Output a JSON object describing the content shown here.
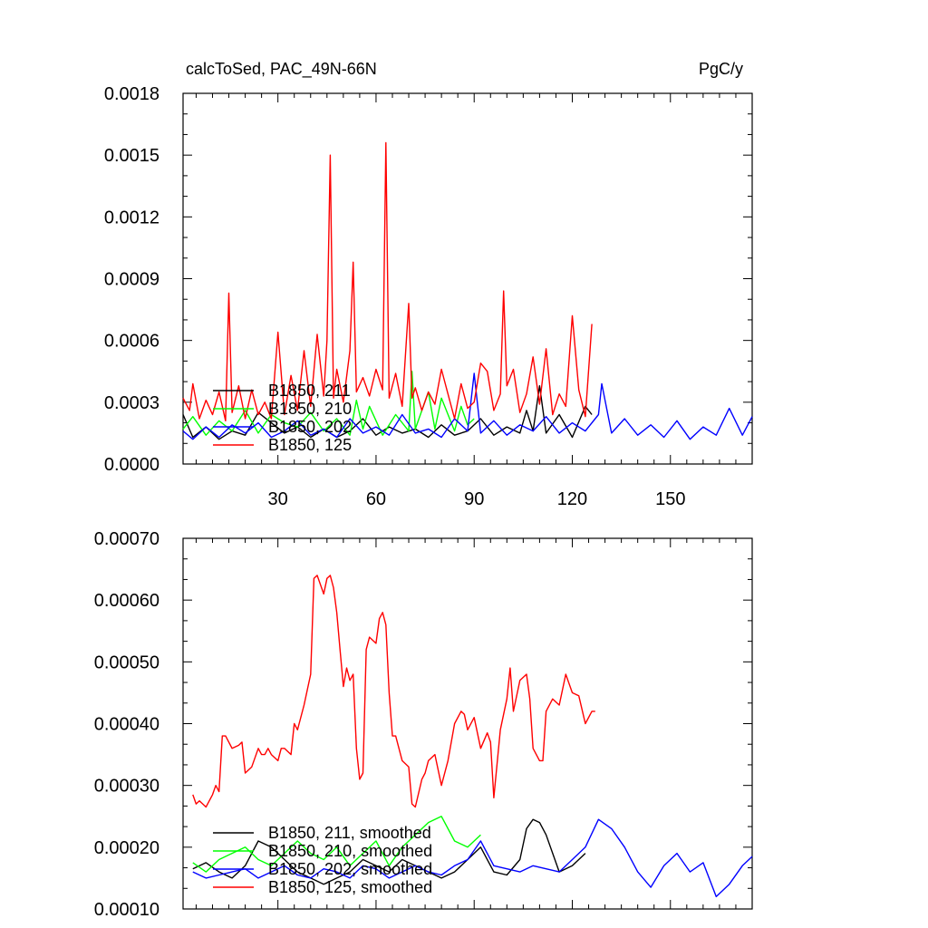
{
  "chart_data": [
    {
      "type": "line",
      "title": "calcToSed, PAC_49N-66N",
      "units": "PgC/y",
      "xlim": [
        1,
        175
      ],
      "ylim": [
        0,
        0.0018
      ],
      "xticks": [
        30,
        60,
        90,
        120,
        150
      ],
      "xtick_labels": [
        "30",
        "60",
        "90",
        "120",
        "150"
      ],
      "yticks": [
        0,
        0.0003,
        0.0006,
        0.0009,
        0.0012,
        0.0015,
        0.0018
      ],
      "ytick_labels": [
        "0.0000",
        "0.0003",
        "0.0006",
        "0.0009",
        "0.0012",
        "0.0015",
        "0.0018"
      ],
      "legend_position": "lower-left",
      "series": [
        {
          "name": "B1850, 211",
          "color": "#000000",
          "x": [
            1,
            4,
            8,
            12,
            16,
            20,
            24,
            28,
            32,
            36,
            40,
            44,
            48,
            52,
            56,
            60,
            64,
            68,
            72,
            76,
            80,
            84,
            88,
            92,
            96,
            100,
            104,
            106,
            108,
            110,
            112,
            116,
            120,
            124,
            126
          ],
          "y": [
            0.00024,
            0.00013,
            0.00018,
            0.00012,
            0.00016,
            0.00014,
            0.00025,
            0.0002,
            0.00015,
            0.00018,
            0.00013,
            0.00017,
            0.00013,
            0.00016,
            0.00022,
            0.00014,
            0.00018,
            0.00015,
            0.00017,
            0.00013,
            0.00019,
            0.00014,
            0.00016,
            0.00022,
            0.00014,
            0.00018,
            0.00015,
            0.00026,
            0.00016,
            0.00038,
            0.00015,
            0.00024,
            0.00013,
            0.00028,
            0.00024
          ]
        },
        {
          "name": "B1850, 210",
          "color": "#00ff00",
          "x": [
            1,
            4,
            8,
            12,
            16,
            20,
            24,
            28,
            32,
            36,
            40,
            44,
            48,
            52,
            54,
            56,
            58,
            62,
            66,
            70,
            71,
            72,
            76,
            78,
            80,
            84,
            86,
            88,
            90
          ],
          "y": [
            0.00017,
            0.00023,
            0.00014,
            0.00021,
            0.00016,
            0.00026,
            0.00015,
            0.00024,
            0.0002,
            0.00018,
            0.00025,
            0.00016,
            0.00022,
            0.00014,
            0.00031,
            0.00017,
            0.00028,
            0.00014,
            0.00024,
            0.00016,
            0.00045,
            0.00017,
            0.00035,
            0.00017,
            0.00032,
            0.00016,
            0.00028,
            0.00019,
            0.00022
          ]
        },
        {
          "name": "B1850, 202",
          "color": "#0000ff",
          "x": [
            1,
            4,
            8,
            12,
            16,
            20,
            24,
            28,
            32,
            36,
            40,
            44,
            48,
            52,
            56,
            60,
            64,
            68,
            72,
            76,
            80,
            84,
            88,
            90,
            92,
            96,
            100,
            104,
            108,
            112,
            116,
            120,
            124,
            128,
            129,
            132,
            136,
            140,
            144,
            148,
            152,
            156,
            160,
            164,
            168,
            172,
            175
          ],
          "y": [
            0.00016,
            0.00012,
            0.00018,
            0.00013,
            0.00019,
            0.00015,
            0.0002,
            0.00013,
            0.00016,
            0.00021,
            0.00014,
            0.00017,
            0.00013,
            0.00022,
            0.00015,
            0.00018,
            0.00014,
            0.00024,
            0.00015,
            0.00017,
            0.00013,
            0.00022,
            0.00016,
            0.00044,
            0.00015,
            0.00021,
            0.00014,
            0.00019,
            0.00016,
            0.00023,
            0.00015,
            0.0002,
            0.00016,
            0.00024,
            0.00039,
            0.00015,
            0.00022,
            0.00014,
            0.00019,
            0.00013,
            0.00021,
            0.00012,
            0.00018,
            0.00014,
            0.00027,
            0.00014,
            0.00023
          ]
        },
        {
          "name": "B1850, 125",
          "color": "#ff0000",
          "x": [
            1,
            3,
            4,
            6,
            8,
            10,
            12,
            14,
            15,
            16,
            18,
            20,
            22,
            24,
            26,
            28,
            30,
            32,
            34,
            36,
            38,
            40,
            42,
            44,
            45,
            46,
            47,
            48,
            50,
            52,
            53,
            54,
            56,
            58,
            60,
            62,
            63,
            64,
            66,
            68,
            70,
            71,
            72,
            74,
            76,
            78,
            80,
            82,
            84,
            86,
            88,
            90,
            92,
            94,
            96,
            98,
            99,
            100,
            102,
            104,
            106,
            108,
            110,
            112,
            114,
            116,
            118,
            120,
            122,
            124,
            126
          ],
          "y": [
            0.00032,
            0.00026,
            0.00039,
            0.00022,
            0.00031,
            0.00024,
            0.00035,
            0.00021,
            0.00083,
            0.00025,
            0.00038,
            0.00022,
            0.00036,
            0.00024,
            0.0003,
            0.00022,
            0.00064,
            0.00024,
            0.00043,
            0.00026,
            0.00055,
            0.00028,
            0.00063,
            0.00033,
            0.0006,
            0.0015,
            0.00032,
            0.00046,
            0.0003,
            0.00055,
            0.00098,
            0.00035,
            0.00042,
            0.00033,
            0.00046,
            0.00036,
            0.00156,
            0.00032,
            0.00044,
            0.00028,
            0.00078,
            0.00032,
            0.00037,
            0.00026,
            0.00035,
            0.00029,
            0.00046,
            0.00034,
            0.00022,
            0.00039,
            0.00027,
            0.0003,
            0.00049,
            0.00045,
            0.00026,
            0.00034,
            0.00084,
            0.00038,
            0.00046,
            0.00025,
            0.00034,
            0.00052,
            0.00029,
            0.00056,
            0.00024,
            0.00034,
            0.00028,
            0.00072,
            0.00036,
            0.00023,
            0.00068
          ]
        }
      ]
    },
    {
      "type": "line",
      "title": "",
      "xlim": [
        1,
        175
      ],
      "ylim": [
        0.0001,
        0.0007
      ],
      "xticks": [
        30,
        60,
        90,
        120,
        150
      ],
      "xtick_labels": [],
      "yticks": [
        0.0001,
        0.0002,
        0.0003,
        0.0004,
        0.0005,
        0.0006,
        0.0007
      ],
      "ytick_labels": [
        "0.00010",
        "0.00020",
        "0.00030",
        "0.00040",
        "0.00050",
        "0.00060",
        "0.00070"
      ],
      "legend_position": "lower-left",
      "series": [
        {
          "name": "B1850, 211, smoothed",
          "color": "#000000",
          "x": [
            4,
            8,
            12,
            16,
            20,
            24,
            28,
            32,
            36,
            40,
            44,
            48,
            52,
            56,
            60,
            64,
            68,
            72,
            76,
            80,
            84,
            88,
            92,
            96,
            100,
            104,
            106,
            108,
            110,
            112,
            116,
            120,
            124
          ],
          "y": [
            0.000165,
            0.000175,
            0.00016,
            0.00015,
            0.00017,
            0.00021,
            0.0002,
            0.00018,
            0.00016,
            0.00015,
            0.00014,
            0.00015,
            0.00016,
            0.00018,
            0.00017,
            0.00016,
            0.00018,
            0.00017,
            0.00016,
            0.00015,
            0.00016,
            0.00018,
            0.0002,
            0.00016,
            0.000155,
            0.00018,
            0.00023,
            0.000245,
            0.00024,
            0.00022,
            0.00016,
            0.00017,
            0.00019
          ]
        },
        {
          "name": "B1850, 210, smoothed",
          "color": "#00ff00",
          "x": [
            4,
            8,
            12,
            16,
            20,
            24,
            28,
            32,
            36,
            40,
            44,
            48,
            52,
            56,
            60,
            64,
            68,
            72,
            76,
            80,
            84,
            88,
            92
          ],
          "y": [
            0.000175,
            0.00016,
            0.00018,
            0.00019,
            0.0002,
            0.00018,
            0.00017,
            0.00019,
            0.00021,
            0.00019,
            0.00018,
            0.0002,
            0.00017,
            0.00019,
            0.00021,
            0.00017,
            0.0002,
            0.00022,
            0.00024,
            0.00025,
            0.00021,
            0.0002,
            0.00022
          ]
        },
        {
          "name": "B1850, 202, smoothed",
          "color": "#0000ff",
          "x": [
            4,
            8,
            12,
            16,
            20,
            24,
            28,
            32,
            36,
            40,
            44,
            48,
            52,
            56,
            60,
            64,
            68,
            72,
            76,
            80,
            84,
            88,
            92,
            96,
            100,
            104,
            108,
            112,
            116,
            120,
            124,
            128,
            132,
            136,
            140,
            144,
            148,
            152,
            156,
            160,
            164,
            168,
            172,
            175
          ],
          "y": [
            0.00016,
            0.00015,
            0.000155,
            0.00016,
            0.000165,
            0.00015,
            0.00016,
            0.00017,
            0.000155,
            0.00015,
            0.000165,
            0.00016,
            0.00015,
            0.00017,
            0.000165,
            0.00015,
            0.00016,
            0.00017,
            0.00016,
            0.000155,
            0.00017,
            0.00018,
            0.00021,
            0.00017,
            0.000165,
            0.00016,
            0.00017,
            0.000165,
            0.00016,
            0.00018,
            0.0002,
            0.000245,
            0.00023,
            0.0002,
            0.00016,
            0.000135,
            0.00017,
            0.00019,
            0.00016,
            0.000175,
            0.00012,
            0.00014,
            0.00017,
            0.000185
          ]
        },
        {
          "name": "B1850, 125, smoothed",
          "color": "#ff0000",
          "x": [
            4,
            5,
            6,
            7,
            8,
            10,
            11,
            12,
            13,
            14,
            15,
            16,
            18,
            19,
            20,
            22,
            24,
            25,
            26,
            27,
            28,
            30,
            31,
            32,
            34,
            35,
            36,
            38,
            40,
            41,
            42,
            44,
            45,
            46,
            47,
            48,
            49,
            50,
            51,
            52,
            53,
            54,
            55,
            56,
            57,
            58,
            60,
            61,
            62,
            63,
            64,
            65,
            66,
            68,
            70,
            71,
            72,
            74,
            75,
            76,
            78,
            80,
            82,
            84,
            86,
            87,
            88,
            90,
            92,
            94,
            95,
            96,
            98,
            100,
            101,
            102,
            104,
            106,
            107,
            108,
            110,
            111,
            112,
            114,
            116,
            118,
            120,
            122,
            124,
            126,
            127
          ],
          "y": [
            0.000285,
            0.00027,
            0.000275,
            0.00027,
            0.000265,
            0.000285,
            0.0003,
            0.00029,
            0.00038,
            0.00038,
            0.00037,
            0.00036,
            0.000365,
            0.00037,
            0.00032,
            0.00033,
            0.00036,
            0.00035,
            0.00035,
            0.00036,
            0.00035,
            0.00034,
            0.00036,
            0.00036,
            0.00035,
            0.0004,
            0.00039,
            0.00043,
            0.00048,
            0.000635,
            0.00064,
            0.00061,
            0.000635,
            0.00064,
            0.00062,
            0.00058,
            0.00052,
            0.00046,
            0.00049,
            0.00047,
            0.00048,
            0.00036,
            0.00031,
            0.00032,
            0.00052,
            0.00054,
            0.00053,
            0.00057,
            0.00058,
            0.00056,
            0.00045,
            0.00038,
            0.00038,
            0.00034,
            0.00033,
            0.00027,
            0.000265,
            0.00031,
            0.00032,
            0.00034,
            0.00035,
            0.0003,
            0.00034,
            0.0004,
            0.00042,
            0.000415,
            0.00039,
            0.00041,
            0.00036,
            0.000385,
            0.00037,
            0.00028,
            0.00039,
            0.00044,
            0.00049,
            0.00042,
            0.00047,
            0.00048,
            0.00044,
            0.00036,
            0.00034,
            0.00034,
            0.00042,
            0.00044,
            0.00043,
            0.00048,
            0.00045,
            0.000445,
            0.0004,
            0.00042,
            0.00042
          ]
        }
      ]
    }
  ]
}
